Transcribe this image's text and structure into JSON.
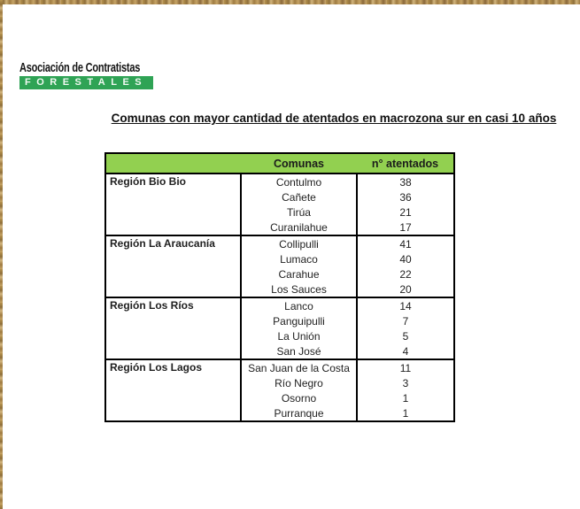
{
  "logo": {
    "line1": "Asociación de Contratistas",
    "line2": "FORESTALES"
  },
  "title": "Comunas con mayor cantidad de atentados en macrozona sur en casi 10 años",
  "table": {
    "headers": {
      "region": "",
      "comunas": "Comunas",
      "atentados": "n° atentados"
    },
    "regions": [
      {
        "name": "Región Bio Bio",
        "rows": [
          {
            "comuna": "Contulmo",
            "n": 38
          },
          {
            "comuna": "Cañete",
            "n": 36
          },
          {
            "comuna": "Tirúa",
            "n": 21
          },
          {
            "comuna": "Curanilahue",
            "n": 17
          }
        ]
      },
      {
        "name": "Región La Araucanía",
        "rows": [
          {
            "comuna": "Collipulli",
            "n": 41
          },
          {
            "comuna": "Lumaco",
            "n": 40
          },
          {
            "comuna": "Carahue",
            "n": 22
          },
          {
            "comuna": "Los Sauces",
            "n": 20
          }
        ]
      },
      {
        "name": "Región Los Ríos",
        "rows": [
          {
            "comuna": "Lanco",
            "n": 14
          },
          {
            "comuna": "Panguipulli",
            "n": 7
          },
          {
            "comuna": "La Unión",
            "n": 5
          },
          {
            "comuna": "San José",
            "n": 4
          }
        ]
      },
      {
        "name": "Región Los Lagos",
        "rows": [
          {
            "comuna": "San Juan de la Costa",
            "n": 11
          },
          {
            "comuna": "Río Negro",
            "n": 3
          },
          {
            "comuna": "Osorno",
            "n": 1
          },
          {
            "comuna": "Purranque",
            "n": 1
          }
        ]
      }
    ]
  },
  "colors": {
    "table_header_green": "#92d050",
    "logo_green": "#2fa355",
    "border_tan": "#b6924f",
    "text": "#1f1f1f"
  }
}
